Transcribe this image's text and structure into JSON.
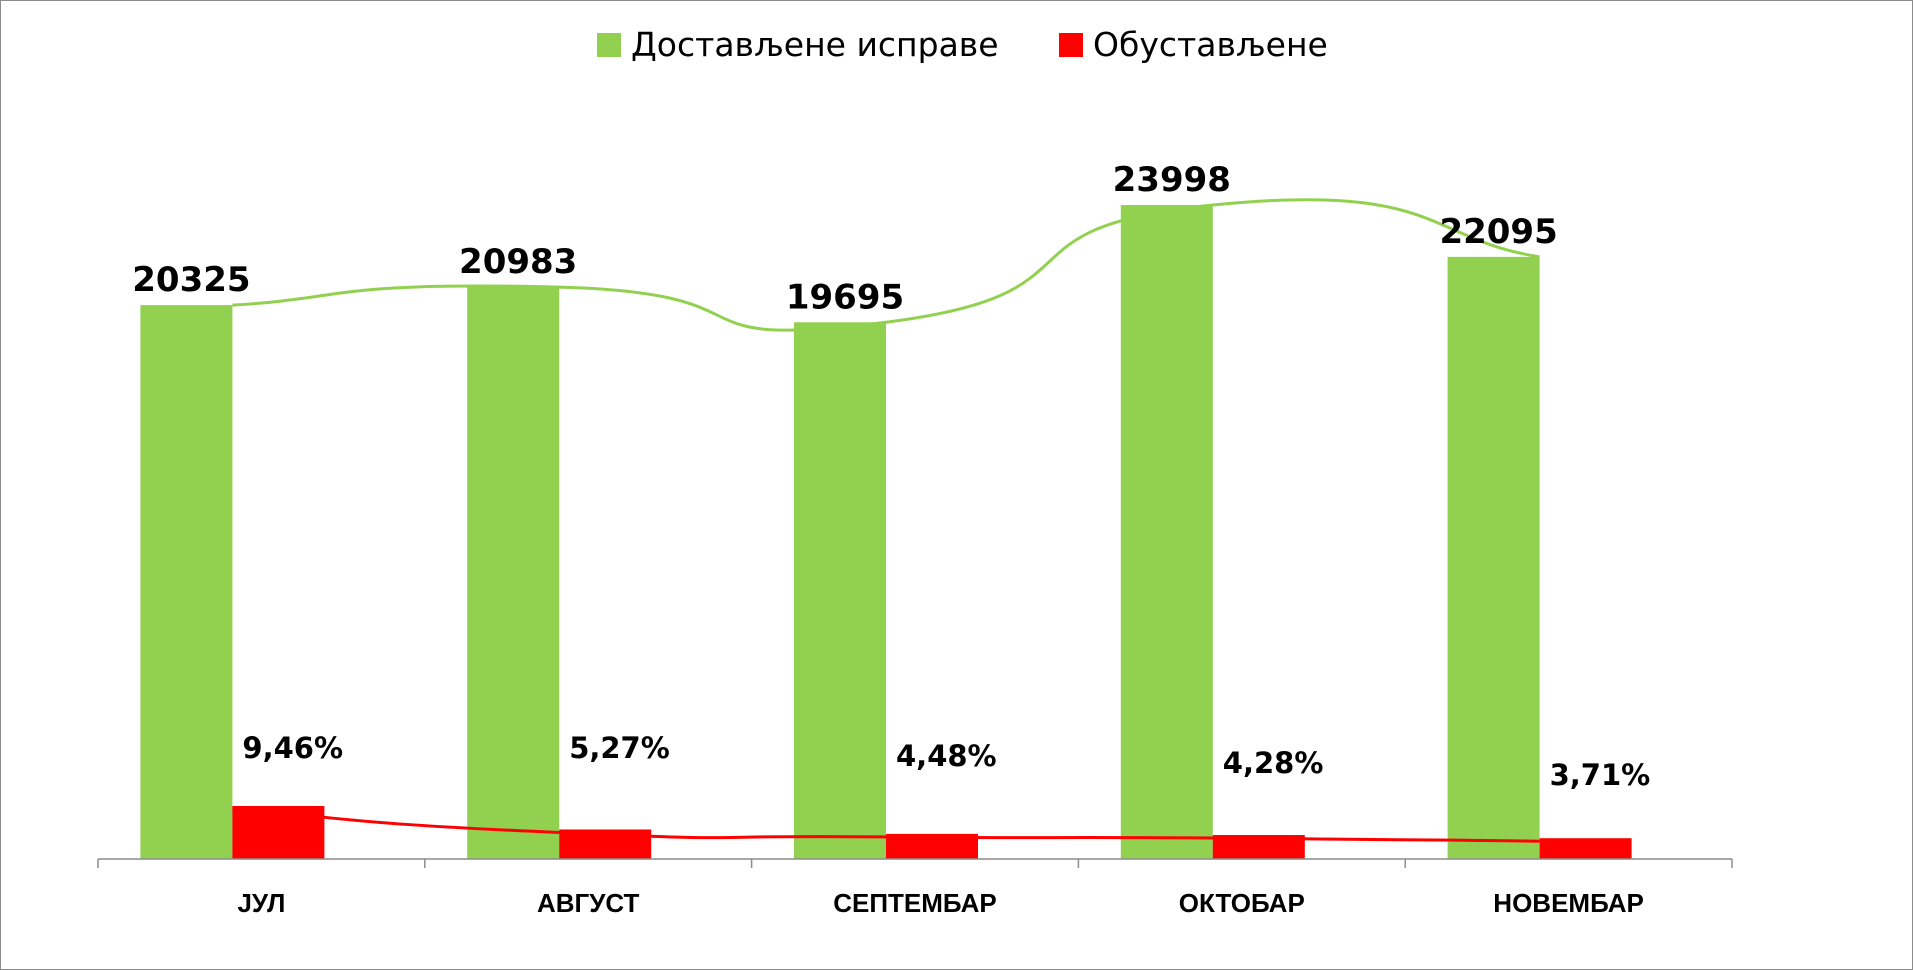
{
  "chart_data": {
    "type": "bar",
    "categories": [
      "ЈУЛ",
      "АВГУСТ",
      "СЕПТЕМБАР",
      "ОКТОБАР",
      "НОВЕМБАР"
    ],
    "series": [
      {
        "name": "Достављене исправе",
        "values": [
          20325,
          20983,
          19695,
          23998,
          22095
        ],
        "labels": [
          "20325",
          "20983",
          "19695",
          "23998",
          "22095"
        ],
        "color": "#92d050"
      },
      {
        "name": "Обустављене",
        "values": [
          9.46,
          5.27,
          4.48,
          4.28,
          3.71
        ],
        "labels": [
          "9,46%",
          "5,27%",
          "4,48%",
          "4,28%",
          "3,71%"
        ],
        "color": "#ff0000"
      }
    ],
    "trend_lines": true,
    "legend": "top-center",
    "grid": false,
    "axes_visible": false
  }
}
